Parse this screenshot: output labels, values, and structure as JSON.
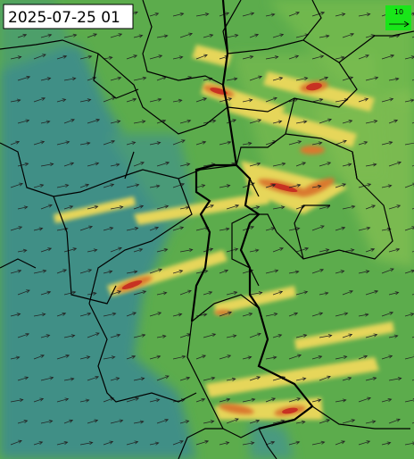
{
  "map": {
    "timestamp": "2025-07-25 01",
    "legend": {
      "label": "10"
    }
  }
}
